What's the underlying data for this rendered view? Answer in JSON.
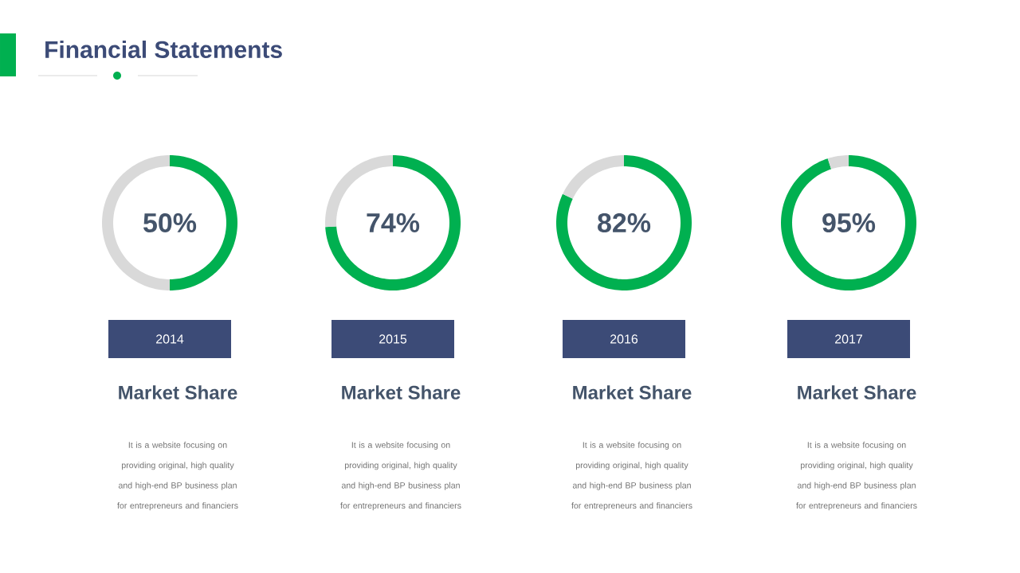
{
  "chart_data": [
    {
      "type": "donut",
      "title": "Market Share",
      "subtitle": "2014",
      "categories": [
        null,
        null
      ],
      "values": [
        50,
        50
      ],
      "colors": [
        "#00b050",
        "#d9d9d9"
      ],
      "value_labels": [
        "50%",
        null
      ],
      "annotations": [
        "Financial Statements",
        "It is a website focusing on providing original, high quality and high-end BP business plan for entrepreneurs and financiers"
      ]
    },
    {
      "type": "donut",
      "title": "Market Share",
      "subtitle": "2015",
      "categories": [
        null,
        null
      ],
      "values": [
        74,
        26
      ],
      "colors": [
        "#00b050",
        "#d9d9d9"
      ],
      "value_labels": [
        "74%",
        null
      ],
      "annotations": [
        "It is a website focusing on providing original, high quality and high-end BP business plan for entrepreneurs and financiers"
      ]
    },
    {
      "type": "donut",
      "title": "Market Share",
      "subtitle": "2016",
      "categories": [
        null,
        null
      ],
      "values": [
        82,
        18
      ],
      "colors": [
        "#00b050",
        "#d9d9d9"
      ],
      "value_labels": [
        "82%",
        null
      ],
      "annotations": [
        "It is a website focusing on providing original, high quality and high-end BP business plan for entrepreneurs and financiers"
      ]
    },
    {
      "type": "donut",
      "title": "Market Share",
      "subtitle": "2017",
      "categories": [
        null,
        null
      ],
      "values": [
        95,
        5
      ],
      "colors": [
        "#00b050",
        "#d9d9d9"
      ],
      "value_labels": [
        "95%",
        null
      ],
      "annotations": [
        "It is a website focusing on providing original, high quality and high-end BP business plan for entrepreneurs and financiers"
      ]
    }
  ]
}
